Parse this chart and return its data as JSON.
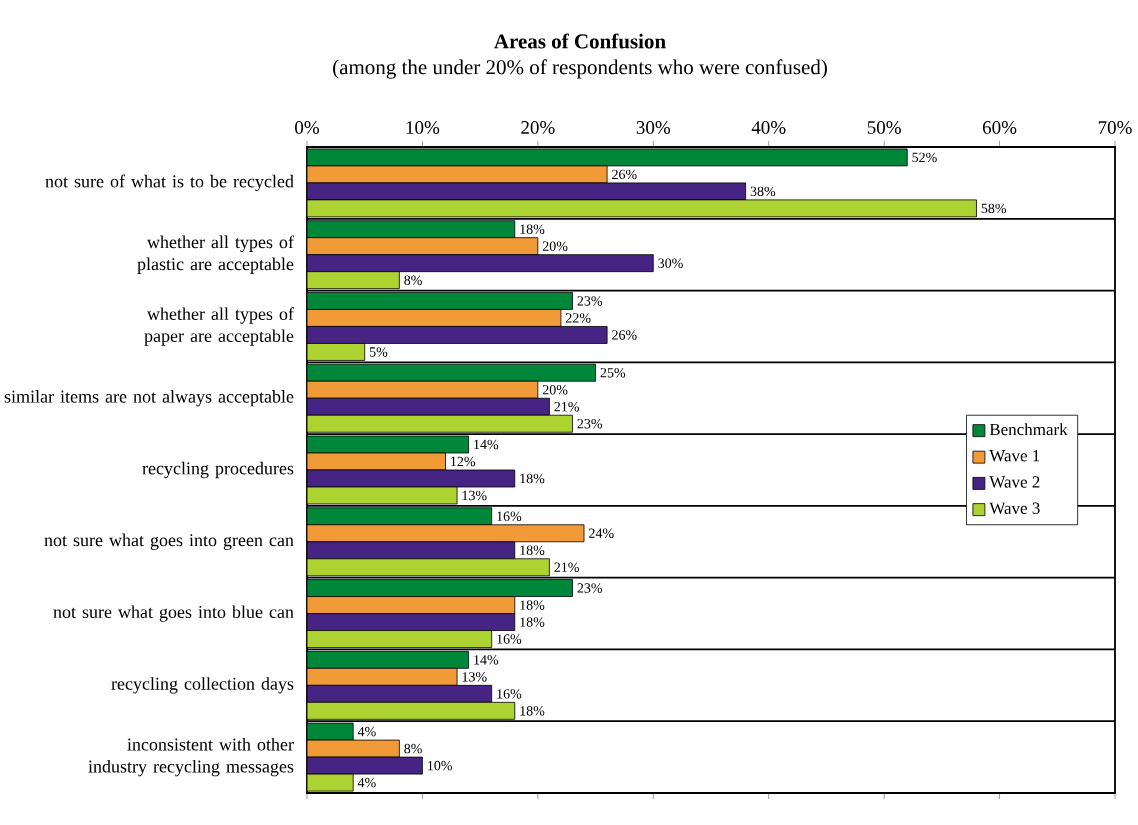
{
  "chart_data": {
    "type": "bar",
    "orientation": "horizontal",
    "title": "Areas of Confusion",
    "subtitle": "(among the under 20% of respondents who were confused)",
    "categories": [
      "not sure of what is to be recycled",
      "whether all types of plastic are acceptable",
      "whether all types of paper are acceptable",
      "similar items are not always acceptable",
      "recycling procedures",
      "not sure what goes into green can",
      "not sure what goes into blue can",
      "recycling collection days",
      "inconsistent with other industry recycling messages"
    ],
    "series": [
      {
        "name": "Benchmark",
        "color": "#00873a",
        "values": [
          52,
          18,
          23,
          25,
          14,
          16,
          23,
          14,
          4
        ],
        "value_labels": [
          "52%",
          "18%",
          "23%",
          "25%",
          "14%",
          "16%",
          "23%",
          "14%",
          "4%"
        ]
      },
      {
        "name": "Wave 1",
        "color": "#f09a38",
        "values": [
          26,
          20,
          22,
          20,
          12,
          24,
          18,
          13,
          8
        ],
        "value_labels": [
          "26%",
          "20%",
          "22%",
          "20%",
          "12%",
          "24%",
          "18%",
          "13%",
          "8%"
        ]
      },
      {
        "name": "Wave 2",
        "color": "#452483",
        "values": [
          38,
          30,
          26,
          21,
          18,
          18,
          18,
          16,
          10
        ],
        "value_labels": [
          "38%",
          "30%",
          "26%",
          "21%",
          "18%",
          "18%",
          "18%",
          "16%",
          "10%"
        ]
      },
      {
        "name": "Wave 3",
        "color": "#add332",
        "values": [
          58,
          8,
          5,
          23,
          13,
          21,
          16,
          18,
          4
        ],
        "value_labels": [
          "58%",
          "8%",
          "5%",
          "23%",
          "13%",
          "21%",
          "16%",
          "18%",
          "4%"
        ]
      }
    ],
    "xlim": [
      0,
      70
    ],
    "xticks": [
      {
        "value": 0,
        "label": "0%"
      },
      {
        "value": 10,
        "label": "10%"
      },
      {
        "value": 20,
        "label": "20%"
      },
      {
        "value": 30,
        "label": "30%"
      },
      {
        "value": 40,
        "label": "40%"
      },
      {
        "value": 50,
        "label": "50%"
      },
      {
        "value": 60,
        "label": "60%"
      },
      {
        "value": 70,
        "label": "70%"
      }
    ],
    "grid": "y",
    "legend": "right"
  }
}
